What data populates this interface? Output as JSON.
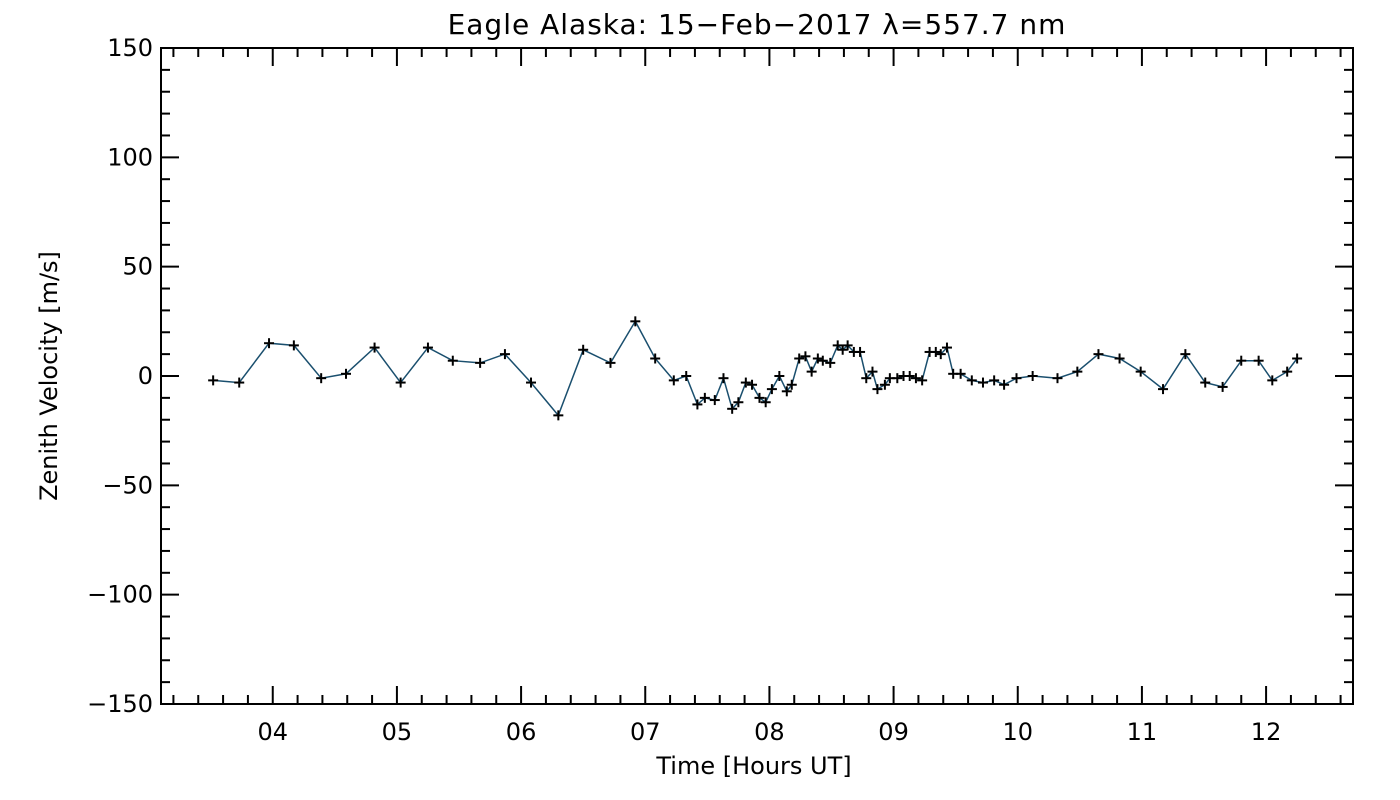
{
  "chart_data": {
    "type": "line",
    "title": "Eagle Alaska: 15−Feb−2017 λ=557.7 nm",
    "xlabel": "Time [Hours UT]",
    "ylabel": "Zenith Velocity [m/s]",
    "xlim": [
      3.1,
      12.7
    ],
    "ylim": [
      -150,
      150
    ],
    "x_ticks": [
      4,
      5,
      6,
      7,
      8,
      9,
      10,
      11,
      12
    ],
    "x_tick_labels": [
      "04",
      "05",
      "06",
      "07",
      "08",
      "09",
      "10",
      "11",
      "12"
    ],
    "y_ticks": [
      -150,
      -100,
      -50,
      0,
      50,
      100,
      150
    ],
    "y_tick_labels": [
      "−150",
      "−100",
      "−50",
      "0",
      "50",
      "100",
      "150"
    ],
    "grid": false,
    "line_color": "#1a4f6e",
    "marker_color": "#000000",
    "marker": "plus",
    "series": [
      {
        "x": [
          3.52,
          3.73,
          3.97,
          4.17,
          4.39,
          4.59,
          4.82,
          5.03,
          5.25,
          5.45,
          5.67,
          5.87,
          6.08,
          6.3,
          6.5,
          6.72,
          6.92,
          7.08,
          7.23,
          7.33,
          7.42,
          7.48,
          7.56,
          7.63,
          7.7,
          7.75,
          7.81,
          7.86,
          7.92,
          7.97,
          8.02,
          8.08,
          8.14,
          8.18,
          8.24,
          8.29,
          8.34,
          8.39,
          8.43,
          8.49,
          8.55,
          8.59,
          8.63,
          8.68,
          8.73,
          8.78,
          8.83,
          8.87,
          8.93,
          8.97,
          9.03,
          9.08,
          9.13,
          9.18,
          9.23,
          9.29,
          9.34,
          9.38,
          9.43,
          9.48,
          9.54,
          9.63,
          9.72,
          9.81,
          9.89,
          9.99,
          10.12,
          10.32,
          10.48,
          10.65,
          10.82,
          10.99,
          11.17,
          11.35,
          11.51,
          11.65,
          11.8,
          11.94,
          12.05,
          12.17,
          12.25
        ],
        "y": [
          -2,
          -3,
          15,
          14,
          -1,
          1,
          13,
          -3,
          13,
          7,
          6,
          10,
          -3,
          -18,
          12,
          6,
          25,
          8,
          -2,
          0,
          -13,
          -10,
          -11,
          -1,
          -15,
          -12,
          -3,
          -4,
          -10,
          -12,
          -6,
          0,
          -7,
          -4,
          8,
          9,
          2,
          8,
          7,
          6,
          14,
          12,
          14,
          11,
          11,
          -1,
          2,
          -6,
          -4,
          -1,
          -1,
          0,
          0,
          -1,
          -2,
          11,
          11,
          10,
          13,
          1,
          1,
          -2,
          -3,
          -2,
          -4,
          -1,
          0,
          -1,
          2,
          10,
          8,
          2,
          -6,
          10,
          -3,
          -5,
          7,
          7,
          -2,
          2,
          8
        ]
      }
    ]
  }
}
